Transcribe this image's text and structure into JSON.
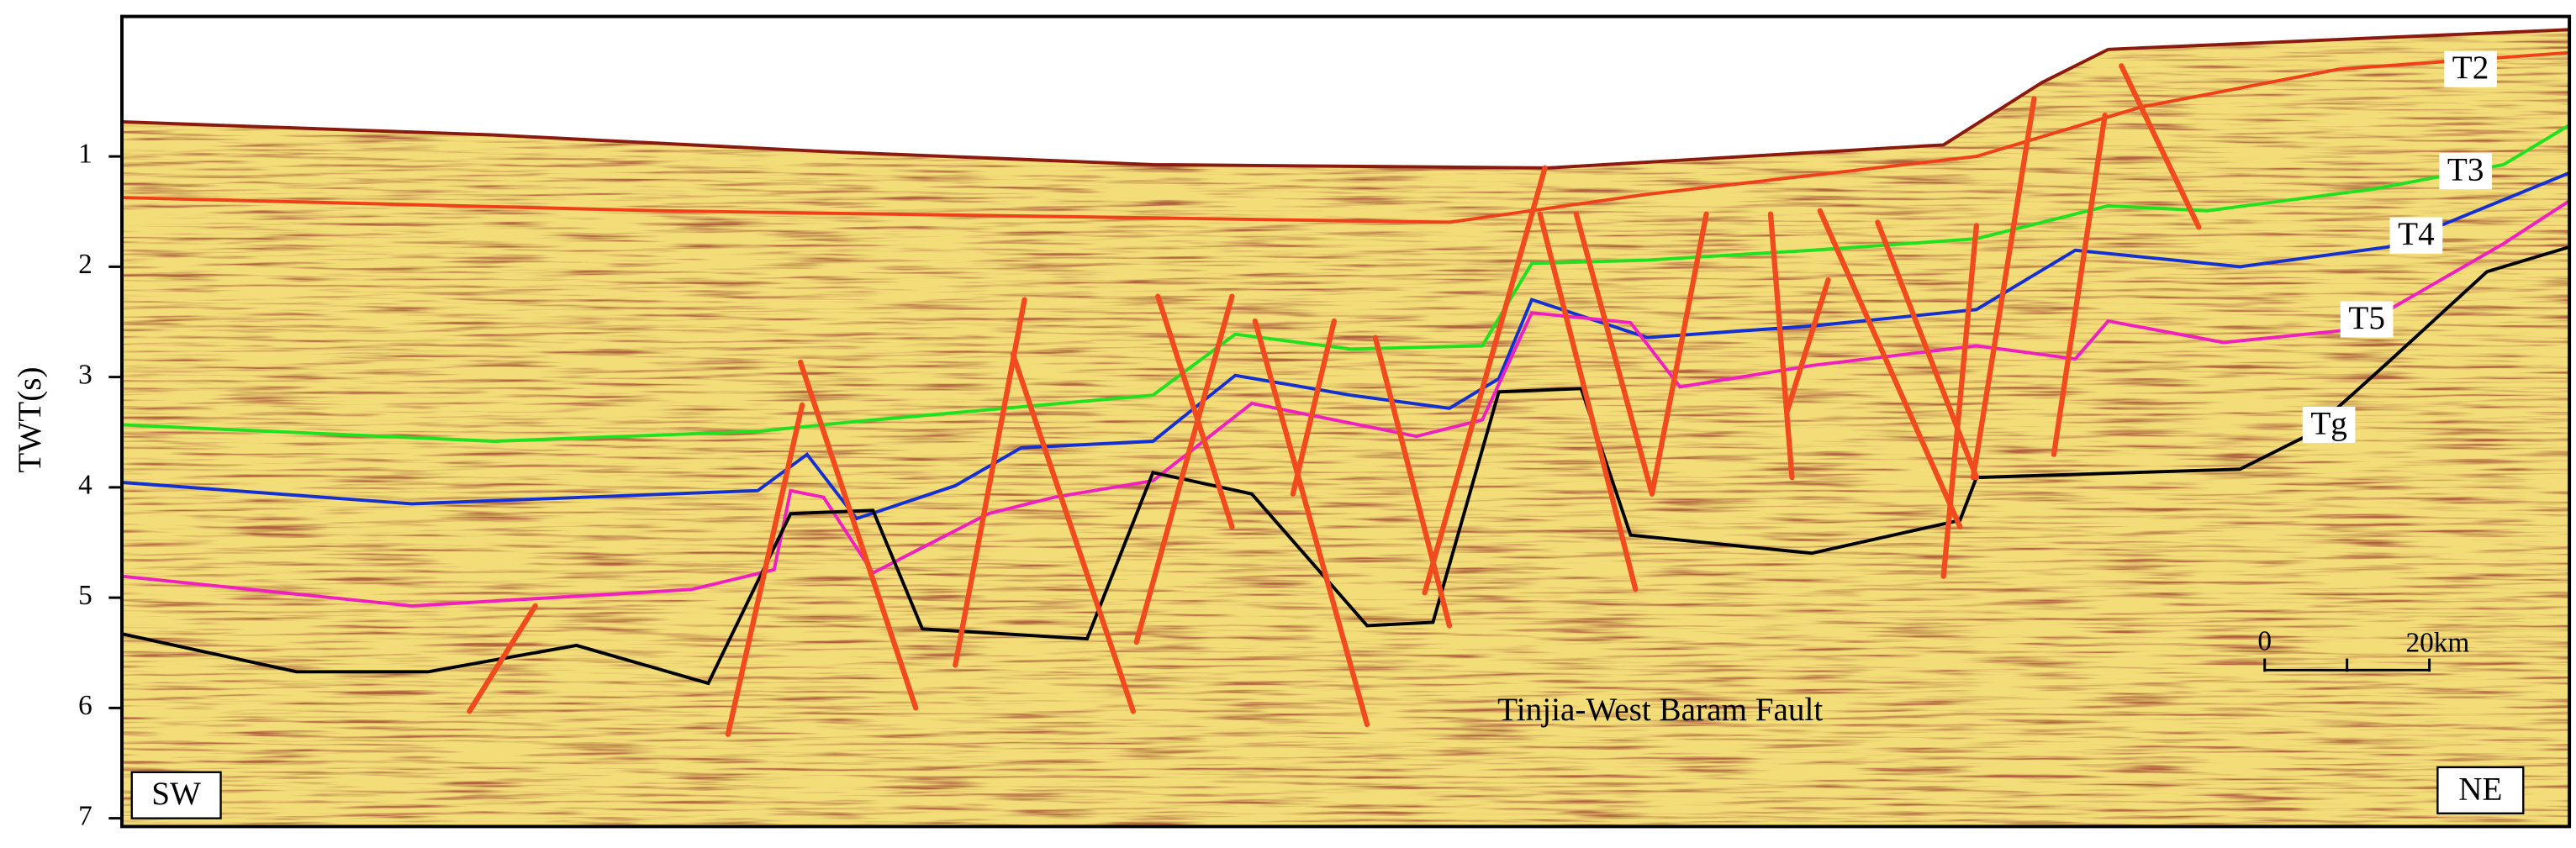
{
  "axis": {
    "label": "TWT(s)",
    "ticks": [
      1,
      2,
      3,
      4,
      5,
      6,
      7
    ]
  },
  "horizons": [
    {
      "label": "T2"
    },
    {
      "label": "T3"
    },
    {
      "label": "T4"
    },
    {
      "label": "T5"
    },
    {
      "label": "Tg"
    }
  ],
  "annotations": {
    "fault": "Tinjia-West Baram Fault",
    "left": "SW",
    "right": "NE"
  },
  "scale_bar": {
    "start": "0",
    "end": "20km"
  }
}
